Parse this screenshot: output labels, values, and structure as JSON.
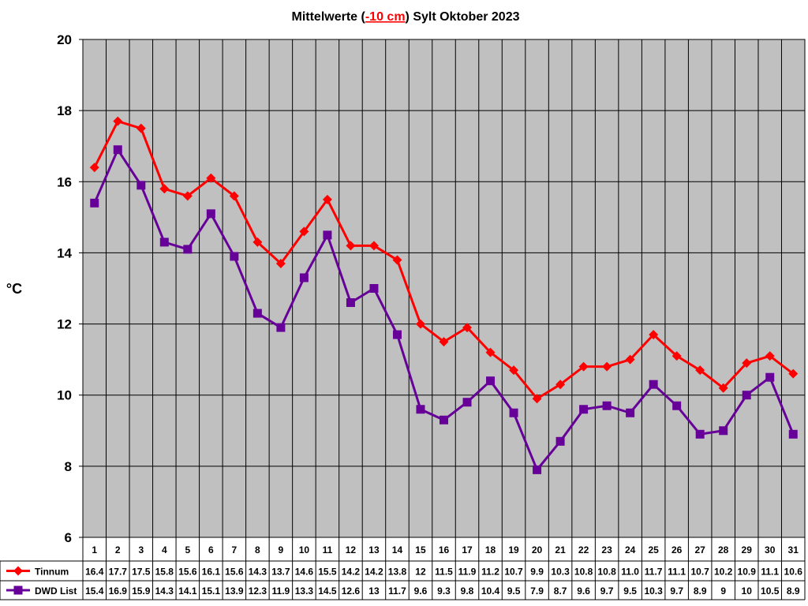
{
  "chart_data": {
    "type": "line",
    "title_parts": {
      "before": "Mittelwerte (",
      "highlight": "-10 cm",
      "after": ") Sylt Oktober 2023"
    },
    "title_highlight_color": "#ff0000",
    "ylabel": "°C",
    "xlabel": "",
    "ylim": [
      6,
      20
    ],
    "yticks": [
      "6",
      "8",
      "10",
      "12",
      "14",
      "16",
      "18",
      "20"
    ],
    "grid": true,
    "plot_background": "#c0c0c0",
    "legend_placement": "data table below plot",
    "categories": [
      "1",
      "2",
      "3",
      "4",
      "5",
      "6",
      "7",
      "8",
      "9",
      "10",
      "11",
      "12",
      "13",
      "14",
      "15",
      "16",
      "17",
      "18",
      "19",
      "20",
      "21",
      "22",
      "23",
      "24",
      "25",
      "26",
      "27",
      "28",
      "29",
      "30",
      "31"
    ],
    "series": [
      {
        "name": "Tinnum",
        "color": "#ff0000",
        "marker": "diamond",
        "values": [
          16.4,
          17.7,
          17.5,
          15.8,
          15.6,
          16.1,
          15.6,
          14.3,
          13.7,
          14.6,
          15.5,
          14.2,
          14.2,
          13.8,
          12,
          11.5,
          11.9,
          11.2,
          10.7,
          9.9,
          10.3,
          10.8,
          10.8,
          11.0,
          11.7,
          11.1,
          10.7,
          10.2,
          10.9,
          11.1,
          10.6
        ],
        "table_labels": [
          "16.4",
          "17.7",
          "17.5",
          "15.8",
          "15.6",
          "16.1",
          "15.6",
          "14.3",
          "13.7",
          "14.6",
          "15.5",
          "14.2",
          "14.2",
          "13.8",
          "12",
          "11.5",
          "11.9",
          "11.2",
          "10.7",
          "9.9",
          "10.3",
          "10.8",
          "10.8",
          "11.0",
          "11.7",
          "11.1",
          "10.7",
          "10.2",
          "10.9",
          "11.1",
          "10.6"
        ]
      },
      {
        "name": "DWD List",
        "color": "#660099",
        "marker": "square",
        "values": [
          15.4,
          16.9,
          15.9,
          14.3,
          14.1,
          15.1,
          13.9,
          12.3,
          11.9,
          13.3,
          14.5,
          12.6,
          13,
          11.7,
          9.6,
          9.3,
          9.8,
          10.4,
          9.5,
          7.9,
          8.7,
          9.6,
          9.7,
          9.5,
          10.3,
          9.7,
          8.9,
          9,
          10,
          10.5,
          8.9
        ],
        "table_labels": [
          "15.4",
          "16.9",
          "15.9",
          "14.3",
          "14.1",
          "15.1",
          "13.9",
          "12.3",
          "11.9",
          "13.3",
          "14.5",
          "12.6",
          "13",
          "11.7",
          "9.6",
          "9.3",
          "9.8",
          "10.4",
          "9.5",
          "7.9",
          "8.7",
          "9.6",
          "9.7",
          "9.5",
          "10.3",
          "9.7",
          "8.9",
          "9",
          "10",
          "10.5",
          "8.9"
        ]
      }
    ]
  }
}
